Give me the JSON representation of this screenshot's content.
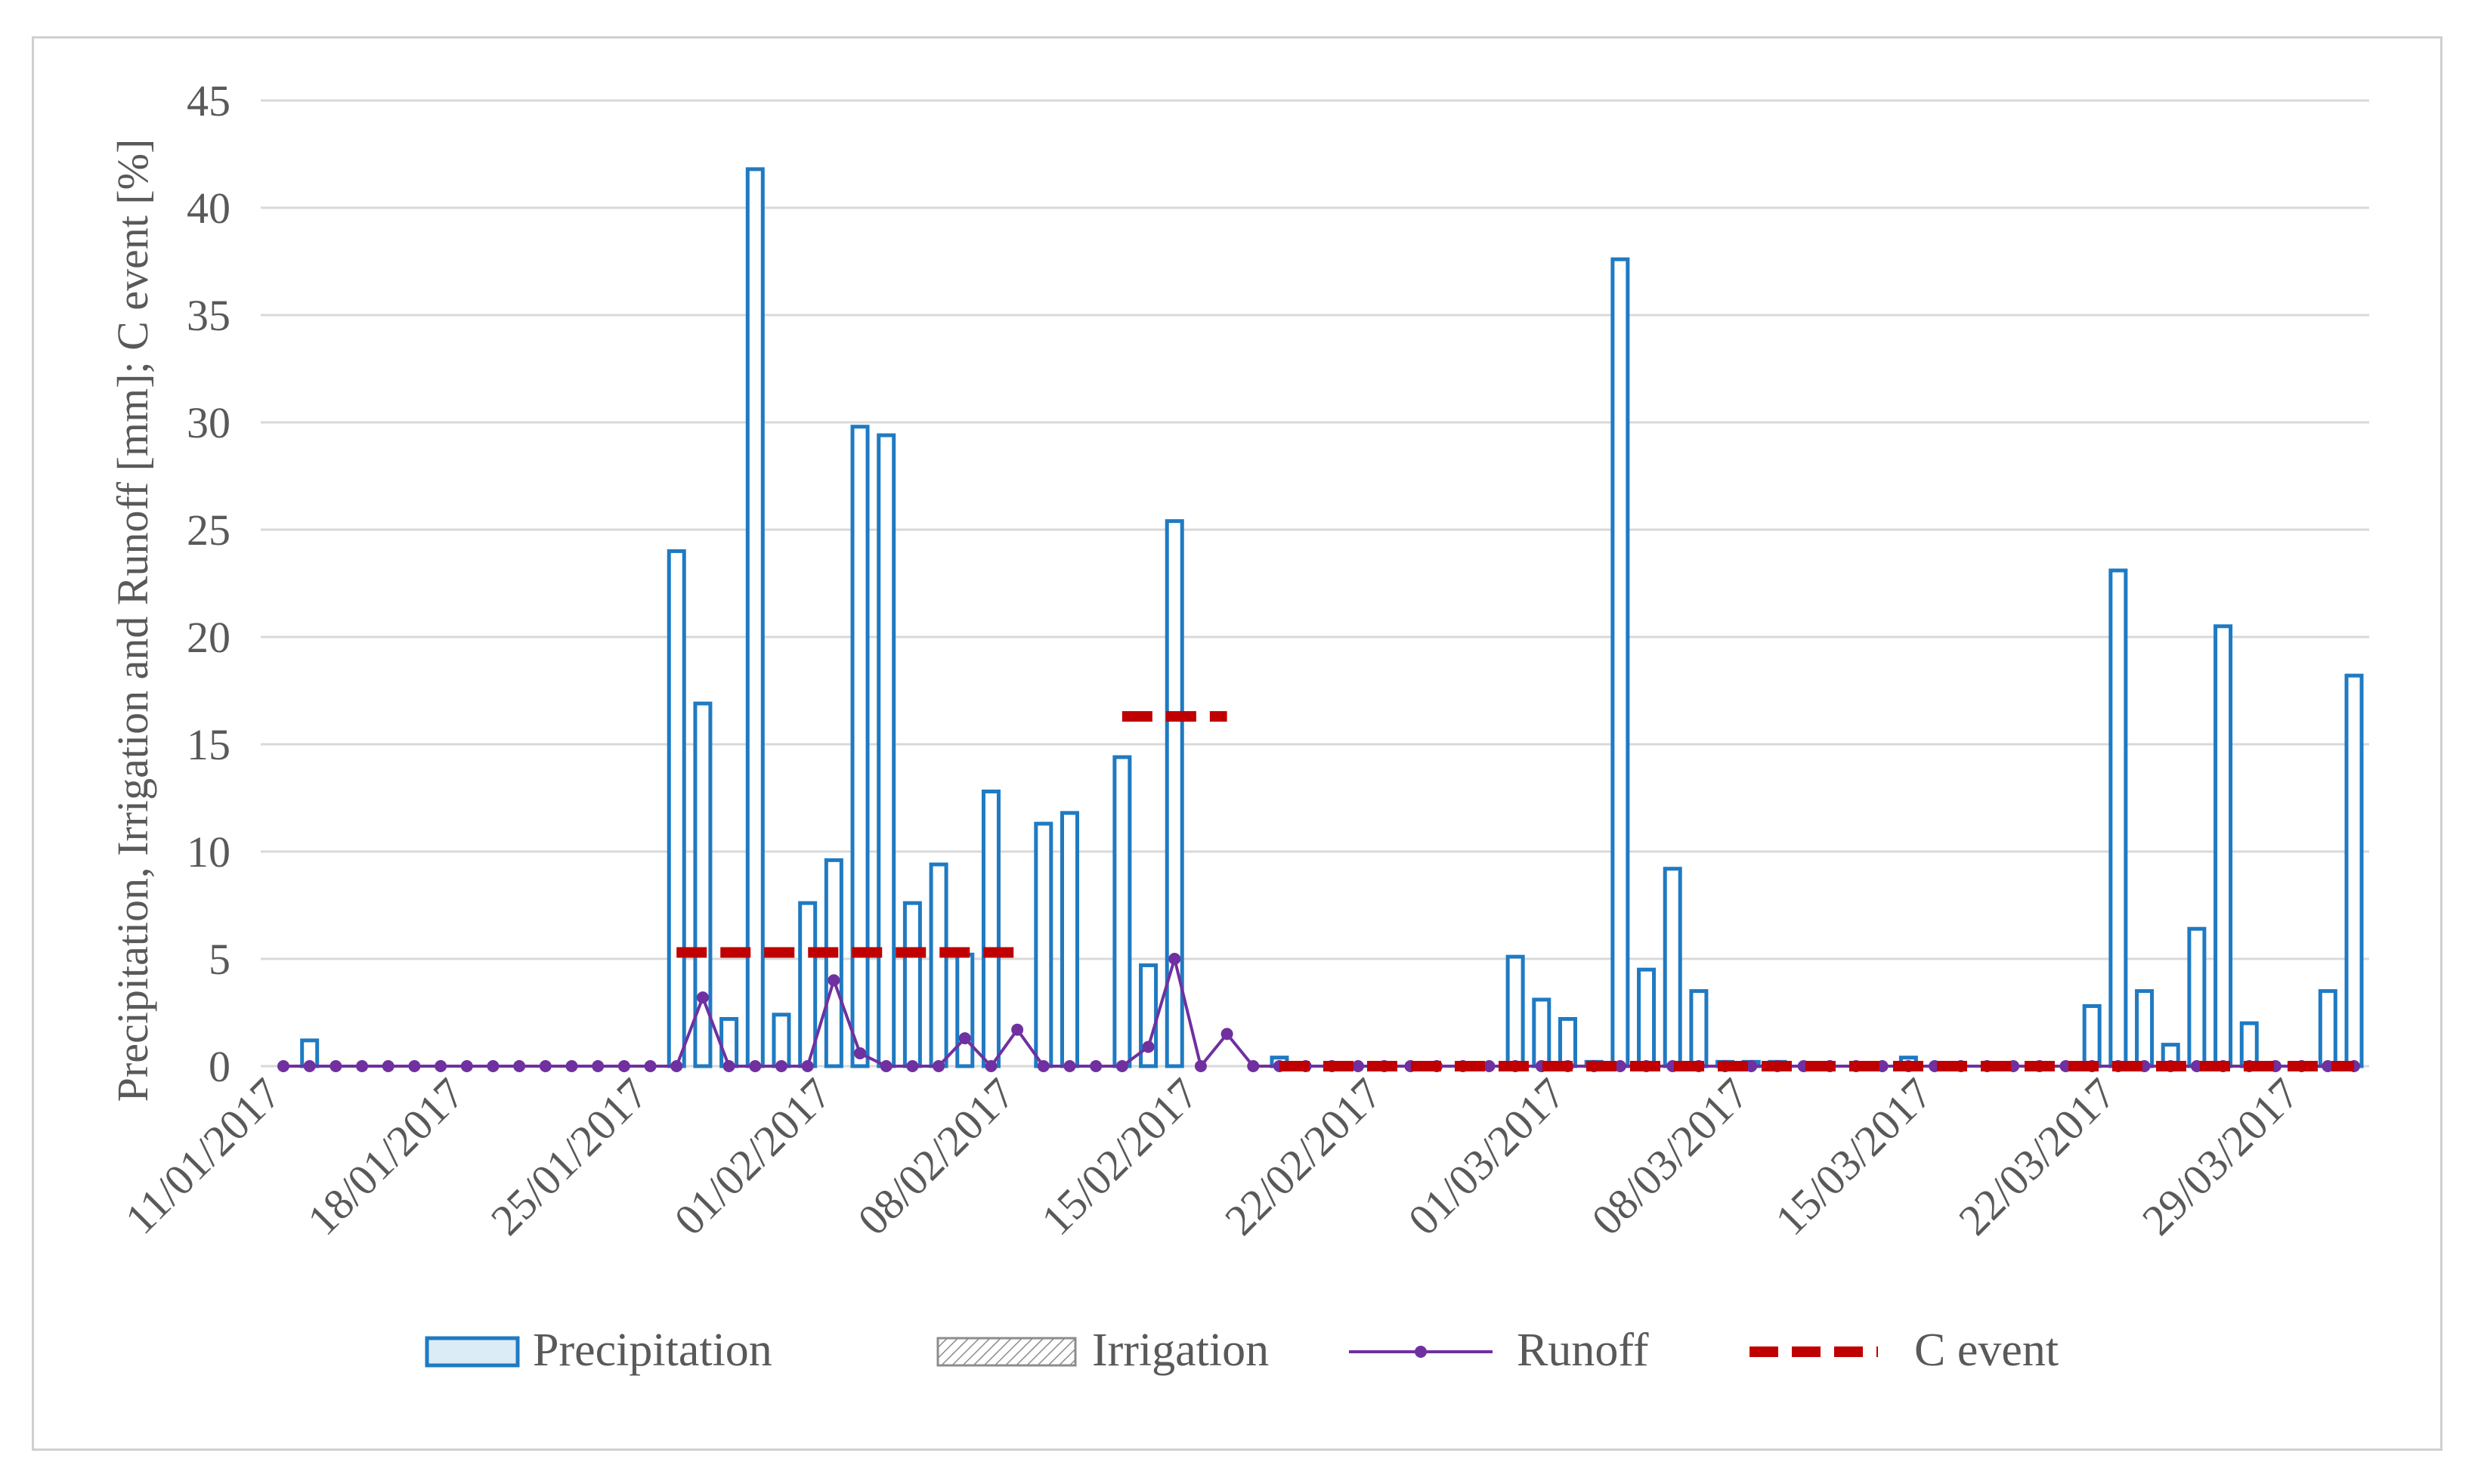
{
  "chart_data": {
    "type": "bar",
    "title": "",
    "xlabel": "",
    "ylabel": "Precipitation, Irrigation  and Runoff [mm]; C event [%]",
    "ylim": [
      0,
      45
    ],
    "y_ticks": [
      "0",
      "5",
      "10",
      "15",
      "20",
      "25",
      "30",
      "35",
      "40",
      "45"
    ],
    "x_start": "2017-01-11",
    "x_end": "2017-03-31",
    "x_tick_labels": [
      "11/01/2017",
      "18/01/2017",
      "25/01/2017",
      "01/02/2017",
      "08/02/2017",
      "15/02/2017",
      "22/02/2017",
      "01/03/2017",
      "08/03/2017",
      "15/03/2017",
      "22/03/2017",
      "29/03/2017"
    ],
    "grid": true,
    "legend_position": "bottom",
    "series": [
      {
        "name": "Precipitation",
        "kind": "bar",
        "color": "#1f7ac2",
        "points": [
          [
            "2017-01-12",
            1.2
          ],
          [
            "2017-01-26",
            24.0
          ],
          [
            "2017-01-27",
            16.9
          ],
          [
            "2017-01-28",
            2.2
          ],
          [
            "2017-01-29",
            41.8
          ],
          [
            "2017-01-30",
            2.4
          ],
          [
            "2017-01-31",
            7.6
          ],
          [
            "2017-02-01",
            9.6
          ],
          [
            "2017-02-02",
            29.8
          ],
          [
            "2017-02-03",
            29.4
          ],
          [
            "2017-02-04",
            7.6
          ],
          [
            "2017-02-05",
            9.4
          ],
          [
            "2017-02-06",
            5.2
          ],
          [
            "2017-02-07",
            12.8
          ],
          [
            "2017-02-09",
            11.3
          ],
          [
            "2017-02-10",
            11.8
          ],
          [
            "2017-02-12",
            14.4
          ],
          [
            "2017-02-13",
            4.7
          ],
          [
            "2017-02-14",
            25.4
          ],
          [
            "2017-02-18",
            0.4
          ],
          [
            "2017-02-27",
            5.1
          ],
          [
            "2017-02-28",
            3.1
          ],
          [
            "2017-03-01",
            2.2
          ],
          [
            "2017-03-02",
            0.2
          ],
          [
            "2017-03-03",
            37.6
          ],
          [
            "2017-03-04",
            4.5
          ],
          [
            "2017-03-05",
            9.2
          ],
          [
            "2017-03-06",
            3.5
          ],
          [
            "2017-03-07",
            0.2
          ],
          [
            "2017-03-08",
            0.2
          ],
          [
            "2017-03-09",
            0.2
          ],
          [
            "2017-03-14",
            0.4
          ],
          [
            "2017-03-21",
            2.8
          ],
          [
            "2017-03-22",
            23.1
          ],
          [
            "2017-03-23",
            3.5
          ],
          [
            "2017-03-24",
            1.0
          ],
          [
            "2017-03-25",
            6.4
          ],
          [
            "2017-03-26",
            20.5
          ],
          [
            "2017-03-27",
            2.0
          ],
          [
            "2017-03-30",
            3.5
          ],
          [
            "2017-03-31",
            18.2
          ]
        ]
      },
      {
        "name": "Irrigation",
        "kind": "bar",
        "color": "#8c8c8c",
        "points": []
      },
      {
        "name": "Runoff",
        "kind": "line",
        "color": "#7030a0",
        "points": [
          [
            "2017-01-27",
            3.2
          ],
          [
            "2017-02-01",
            4.0
          ],
          [
            "2017-02-02",
            0.6
          ],
          [
            "2017-02-06",
            1.3
          ],
          [
            "2017-02-08",
            1.7
          ],
          [
            "2017-02-13",
            0.9
          ],
          [
            "2017-02-14",
            5.0
          ],
          [
            "2017-02-16",
            1.5
          ]
        ]
      },
      {
        "name": "C event",
        "kind": "dashed-segments",
        "color": "#c00000",
        "segments": [
          {
            "from": "2017-01-26",
            "to": "2017-02-08",
            "value": 5.3
          },
          {
            "from": "2017-02-12",
            "to": "2017-02-16",
            "value": 16.3
          },
          {
            "from": "2017-02-18",
            "to": "2017-03-31",
            "value": 0.0
          }
        ]
      }
    ]
  }
}
